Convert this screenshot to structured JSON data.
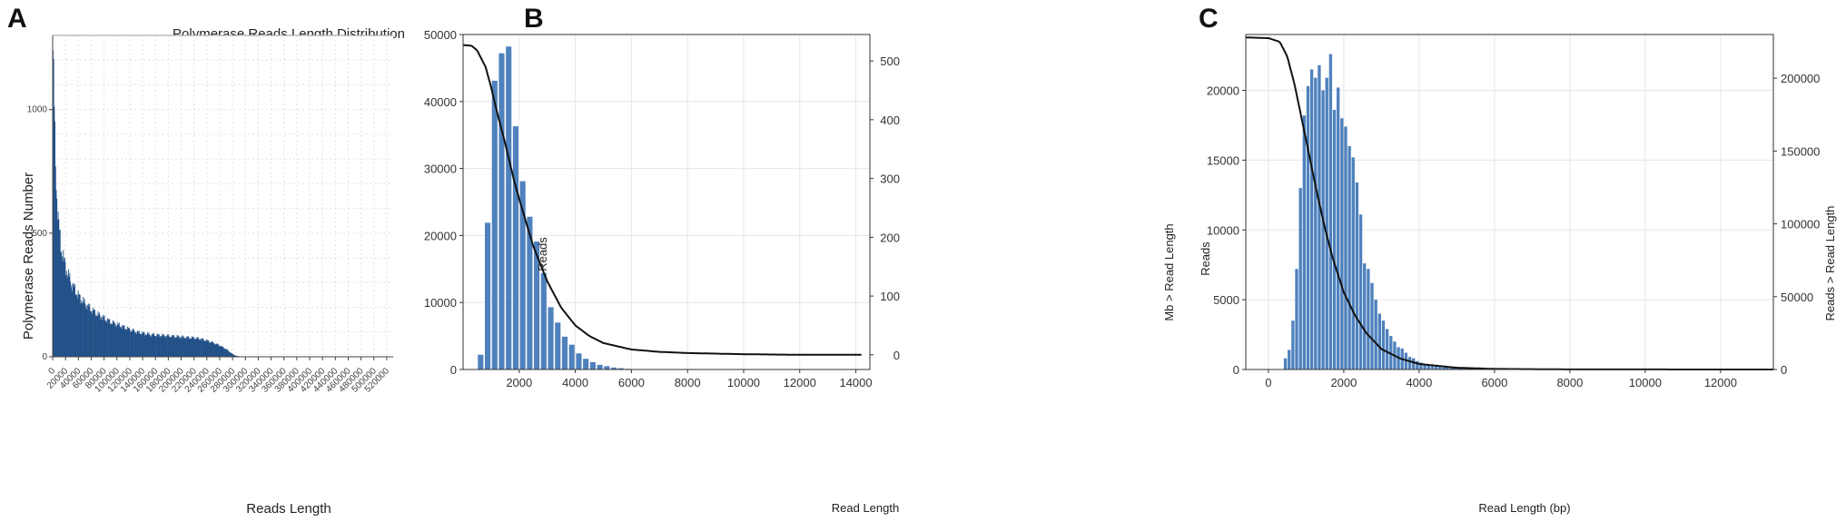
{
  "chart_data": [
    {
      "panel_label": "A",
      "type": "bar",
      "title": "Polymerase Reads Length Distribution",
      "xlabel": "Reads Length",
      "ylabel": "Polymerase Reads Number",
      "xlim": [
        0,
        530000
      ],
      "ylim": [
        0,
        1300
      ],
      "xticks": [
        "0",
        "20000",
        "40000",
        "60000",
        "80000",
        "100000",
        "120000",
        "140000",
        "160000",
        "180000",
        "200000",
        "220000",
        "240000",
        "260000",
        "280000",
        "300000",
        "320000",
        "340000",
        "360000",
        "380000",
        "400000",
        "420000",
        "440000",
        "460000",
        "480000",
        "500000",
        "520000"
      ],
      "yticks": [
        "0",
        "500",
        "1000"
      ],
      "grid": true,
      "color": "#1f4e86",
      "bin_width": 1000,
      "x": [
        0,
        1000,
        2000,
        3000,
        4000,
        5000,
        6000,
        8000,
        10000,
        12000,
        15000,
        20000,
        25000,
        30000,
        40000,
        50000,
        60000,
        70000,
        80000,
        90000,
        100000,
        110000,
        120000,
        130000,
        140000,
        150000,
        160000,
        170000,
        180000,
        190000,
        200000,
        210000,
        220000,
        230000,
        240000,
        250000,
        260000,
        270000,
        275000,
        280000,
        285000,
        290000,
        300000
      ],
      "values": [
        1240,
        1120,
        1000,
        880,
        790,
        720,
        650,
        560,
        500,
        455,
        410,
        360,
        320,
        290,
        245,
        215,
        190,
        170,
        155,
        140,
        130,
        120,
        110,
        100,
        95,
        90,
        88,
        86,
        84,
        82,
        80,
        78,
        76,
        72,
        65,
        56,
        45,
        30,
        20,
        10,
        4,
        2,
        0
      ]
    },
    {
      "panel_label": "B",
      "type": "bar",
      "xlabel": "Read Length",
      "ylabel": "Reads",
      "y2label": "Mb > Read Length",
      "xlim": [
        0,
        14500
      ],
      "ylim": [
        0,
        50000
      ],
      "y2lim": [
        -25,
        545
      ],
      "xticks": [
        2000,
        4000,
        6000,
        8000,
        10000,
        12000,
        14000
      ],
      "yticks": [
        0,
        10000,
        20000,
        30000,
        40000,
        50000
      ],
      "y2ticks": [
        0,
        100,
        200,
        300,
        400,
        500
      ],
      "grid": true,
      "color": "#4f81bd",
      "bin_width": 250,
      "bins": [
        500,
        750,
        1000,
        1250,
        1500,
        1750,
        2000,
        2250,
        2500,
        2750,
        3000,
        3250,
        3500,
        3750,
        4000,
        4250,
        4500,
        4750,
        5000,
        5250,
        5500,
        5750,
        6000
      ],
      "values": [
        2200,
        21900,
        43100,
        47200,
        48200,
        36300,
        28100,
        22800,
        19100,
        14400,
        9300,
        7000,
        4900,
        3700,
        2400,
        1600,
        1100,
        700,
        500,
        300,
        200,
        100,
        50
      ],
      "line": {
        "x": [
          0,
          300,
          500,
          800,
          1000,
          1200,
          1500,
          1800,
          2000,
          2500,
          3000,
          3500,
          4000,
          4500,
          5000,
          6000,
          7000,
          8000,
          10000,
          12000,
          14200
        ],
        "y": [
          527,
          526,
          518,
          490,
          455,
          415,
          360,
          300,
          265,
          185,
          125,
          80,
          50,
          32,
          20,
          9,
          5,
          3,
          1,
          0,
          0
        ]
      }
    },
    {
      "panel_label": "C",
      "type": "bar",
      "xlabel": "Read Length (bp)",
      "ylabel": "Reads",
      "y2label": "Reads > Read Length",
      "xlim": [
        -600,
        13400
      ],
      "ylim": [
        0,
        24000
      ],
      "y2lim": [
        0,
        230000
      ],
      "xticks": [
        0,
        2000,
        4000,
        6000,
        8000,
        10000,
        12000
      ],
      "yticks": [
        0,
        5000,
        10000,
        15000,
        20000
      ],
      "y2ticks": [
        0,
        50000,
        100000,
        150000,
        200000
      ],
      "grid": true,
      "color": "#4f81bd",
      "bin_width": 100,
      "bins": [
        400,
        500,
        600,
        700,
        800,
        900,
        1000,
        1100,
        1200,
        1300,
        1400,
        1500,
        1600,
        1700,
        1800,
        1900,
        2000,
        2100,
        2200,
        2300,
        2400,
        2500,
        2600,
        2700,
        2800,
        2900,
        3000,
        3100,
        3200,
        3300,
        3400,
        3500,
        3600,
        3700,
        3800,
        3900,
        4000,
        4100,
        4200,
        4300,
        4400,
        4500,
        4600,
        4800,
        5000,
        5500,
        6000
      ],
      "values": [
        800,
        1400,
        3500,
        7200,
        13000,
        18200,
        20300,
        21500,
        20900,
        21800,
        20000,
        20900,
        22600,
        18600,
        20200,
        18000,
        17400,
        16000,
        15200,
        13400,
        11100,
        7600,
        7200,
        6200,
        5000,
        4000,
        3500,
        2900,
        2400,
        2000,
        1600,
        1500,
        1200,
        900,
        800,
        600,
        500,
        400,
        350,
        300,
        250,
        200,
        150,
        100,
        80,
        40,
        10
      ],
      "line": {
        "x": [
          -600,
          0,
          300,
          500,
          700,
          900,
          1100,
          1300,
          1500,
          1700,
          2000,
          2300,
          2600,
          3000,
          3500,
          4000,
          5000,
          6000,
          8000,
          13400
        ],
        "y": [
          228000,
          227500,
          225000,
          215000,
          195000,
          170000,
          145000,
          120000,
          97000,
          77000,
          53000,
          37000,
          25000,
          14000,
          7500,
          3800,
          1200,
          400,
          60,
          0
        ]
      }
    }
  ],
  "labels": {
    "panel_a": "A",
    "panel_b": "B",
    "panel_c": "C"
  }
}
